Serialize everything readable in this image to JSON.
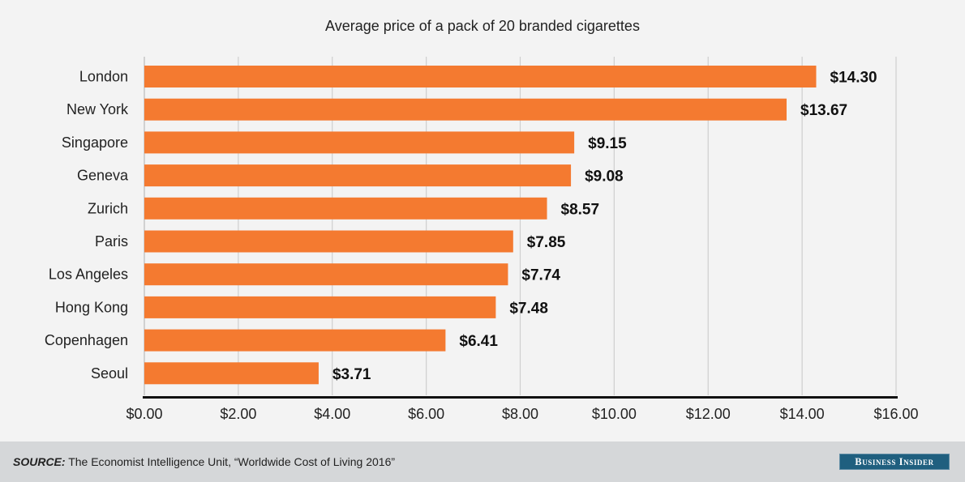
{
  "chart_data": {
    "type": "bar",
    "orientation": "horizontal",
    "title": "Average price of a pack of 20 branded cigarettes",
    "categories": [
      "London",
      "New York",
      "Singapore",
      "Geneva",
      "Zurich",
      "Paris",
      "Los Angeles",
      "Hong Kong",
      "Copenhagen",
      "Seoul"
    ],
    "values": [
      14.3,
      13.67,
      9.15,
      9.08,
      8.57,
      7.85,
      7.74,
      7.48,
      6.41,
      3.71
    ],
    "value_labels": [
      "$14.30",
      "$13.67",
      "$9.15",
      "$9.08",
      "$8.57",
      "$7.85",
      "$7.74",
      "$7.48",
      "$6.41",
      "$3.71"
    ],
    "xlabel": "",
    "ylabel": "",
    "xlim": [
      0,
      16
    ],
    "x_ticks": [
      0,
      2,
      4,
      6,
      8,
      10,
      12,
      14,
      16
    ],
    "x_tick_labels": [
      "$0.00",
      "$2.00",
      "$4.00",
      "$6.00",
      "$8.00",
      "$10.00",
      "$12.00",
      "$14.00",
      "$16.00"
    ],
    "grid": true,
    "legend": "none",
    "bar_color": "#f47a30"
  },
  "footer": {
    "source_label": "SOURCE:",
    "source_text": " The Economist Intelligence Unit, “Worldwide Cost of Living 2016”",
    "brand": "Business Insider",
    "brand_color": "#1f5f7f"
  }
}
